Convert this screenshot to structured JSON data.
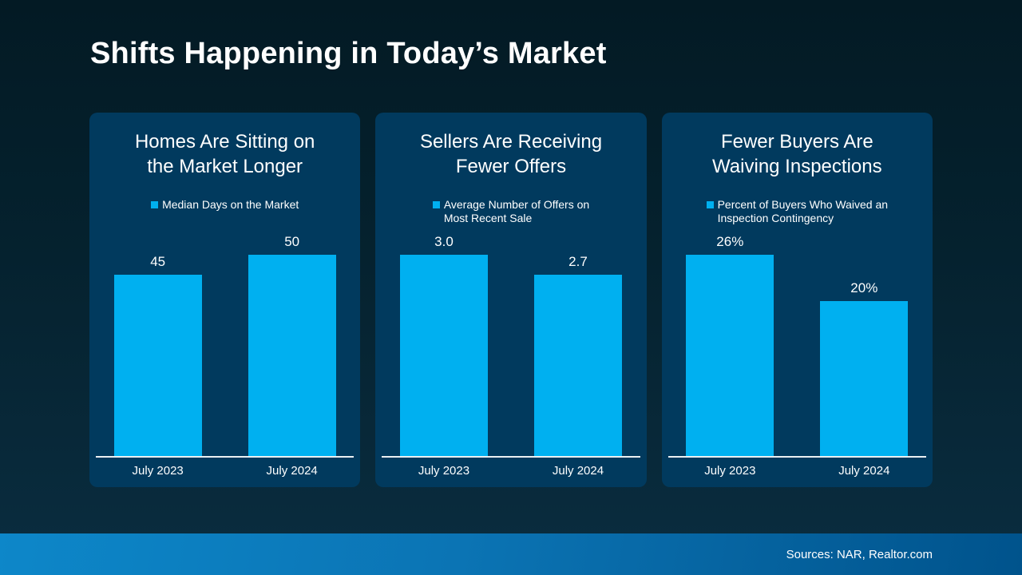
{
  "page": {
    "title": "Shifts Happening in Today’s Market",
    "footer_source": "Sources: NAR, Realtor.com"
  },
  "colors": {
    "bar": "#00b0f0",
    "card_background": "#013a5e",
    "background_top": "#031a24",
    "background_bottom": "#0a2d40",
    "footer_gradient_left": "#0d87c9",
    "footer_gradient_right": "#00538c",
    "text": "#ffffff"
  },
  "chart_data": [
    {
      "type": "bar",
      "title": "Homes Are Sitting on\nthe Market Longer",
      "legend": "Median Days on the Market",
      "categories": [
        "July 2023",
        "July 2024"
      ],
      "values": [
        45,
        50
      ],
      "value_labels": [
        "45",
        "50"
      ],
      "ylim": [
        0,
        50
      ],
      "grid": false,
      "legend_position": "top-center"
    },
    {
      "type": "bar",
      "title": "Sellers Are Receiving\nFewer Offers",
      "legend": "Average Number of Offers on\nMost Recent Sale",
      "categories": [
        "July 2023",
        "July 2024"
      ],
      "values": [
        3.0,
        2.7
      ],
      "value_labels": [
        "3.0",
        "2.7"
      ],
      "ylim": [
        0,
        3.0
      ],
      "grid": false,
      "legend_position": "top-center"
    },
    {
      "type": "bar",
      "title": "Fewer Buyers Are\nWaiving Inspections",
      "legend": "Percent of Buyers Who Waived an\nInspection Contingency",
      "categories": [
        "July 2023",
        "July 2024"
      ],
      "values": [
        26,
        20
      ],
      "value_labels": [
        "26%",
        "20%"
      ],
      "ylim": [
        0,
        26
      ],
      "grid": false,
      "legend_position": "top-center"
    }
  ]
}
